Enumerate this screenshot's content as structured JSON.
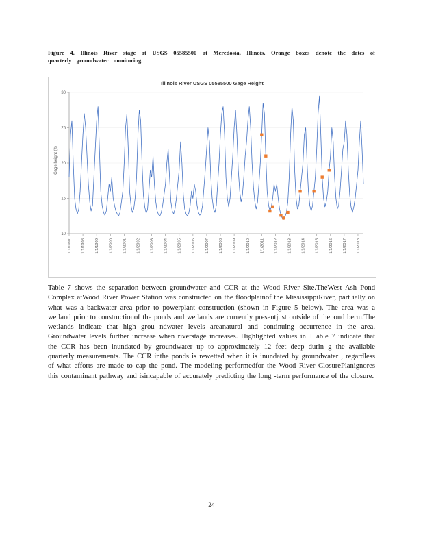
{
  "page": {
    "number": "24"
  },
  "caption": {
    "text": "Figure 4. Illinois River stage at USGS 05585500 at Meredosia, Illinois. Orange boxes denote the dates of quarterly groundwater monitoring."
  },
  "body": {
    "paragraph": "Table 7 shows the separation between groundwater and CCR at the Wood River Site.TheWest Ash Pond Complex atWood River Power Station was constructed on the floodplainof the MississippiRiver, part ially on what was a backwater area prior to powerplant construction (shown in Figure 5 below). The area was a wetland prior to constructionof the ponds and wetlands are currently presentjust outside of thepond berm.The wetlands indicate that high grou ndwater levels areanatural and continuing occurrence in the area. Groundwater levels further increase when riverstage increases. Highlighted values in T able 7 indicate that the CCR has been inundated by groundwater up to approximately 12 feet deep durin g the available quarterly measurements. The CCR inthe ponds is rewetted when it is inundated by groundwater , regardless of what efforts are made to cap the pond. The modeling performedfor the Wood River ClosurePlanignores this contaminant pathway and isincapable of accurately predicting the long -term performance of the closure."
  },
  "chart_data": {
    "type": "line",
    "title": "Illinois River USGS 05585500 Gage Height",
    "xlabel": "",
    "ylabel": "Gage height (ft)",
    "ylim": [
      10,
      30
    ],
    "y_ticks": [
      10,
      15,
      20,
      25,
      30
    ],
    "x_start": 1997,
    "x_end": 2018.4,
    "x_tick_labels": [
      "1/1/1997",
      "1/1/1998",
      "1/1/1999",
      "1/1/2000",
      "1/1/2001",
      "1/1/2002",
      "1/1/2003",
      "1/1/2004",
      "1/1/2005",
      "1/1/2006",
      "1/1/2007",
      "1/1/2008",
      "1/1/2009",
      "1/1/2010",
      "1/1/2011",
      "1/1/2012",
      "1/1/2013",
      "1/1/2014",
      "1/1/2015",
      "1/1/2016",
      "1/1/2017",
      "1/1/2018"
    ],
    "grid": "faint-horizontal",
    "legend": "none",
    "line_color": "#4472c4",
    "marker_color": "#ed7d31",
    "axis_color": "#9f9f9f",
    "series": [
      {
        "name": "Gage height (ft), sampled ~monthly 1997-2018 (estimated from plot)",
        "values": [
          18,
          24,
          26,
          20,
          15,
          13.5,
          12.8,
          13.5,
          16,
          20,
          24,
          27,
          25,
          21,
          17,
          14.5,
          13.2,
          14,
          18,
          22,
          26,
          28,
          22,
          16,
          14,
          13,
          12.6,
          13.2,
          15,
          17,
          16,
          18,
          15,
          14,
          13.2,
          12.8,
          12.5,
          13,
          14.5,
          16,
          20,
          25,
          27,
          22,
          16,
          14,
          13,
          13.5,
          15,
          18,
          24,
          27.5,
          26,
          20,
          15.5,
          13.8,
          12.9,
          13.4,
          16,
          19,
          18,
          21,
          17,
          14.5,
          13.2,
          12.7,
          12.5,
          13,
          14,
          15.5,
          17,
          20,
          22,
          18,
          14.5,
          13.2,
          12.8,
          13.5,
          15,
          17,
          19,
          23,
          20,
          15.5,
          13.5,
          12.8,
          12.5,
          12.9,
          14,
          16,
          15,
          17,
          16,
          14,
          13,
          12.6,
          12.9,
          14,
          16.5,
          19,
          22,
          25,
          23,
          18,
          15,
          13.5,
          13,
          14,
          17,
          20,
          24,
          27,
          28,
          24,
          18,
          15,
          13.8,
          15,
          18,
          21,
          25,
          27.5,
          24,
          19,
          16,
          14.5,
          15.5,
          18,
          21,
          23,
          26,
          28,
          25,
          20,
          16.5,
          14.5,
          13.5,
          14.5,
          17,
          20,
          24,
          28.5,
          27,
          21,
          16,
          14,
          13.2,
          13.8,
          15,
          17,
          16,
          17,
          15,
          13.5,
          12.6,
          12.2,
          12,
          12.4,
          13,
          14.5,
          18,
          24,
          28,
          26,
          19,
          15,
          13.5,
          14,
          16,
          18,
          20,
          24,
          25,
          20,
          16,
          14,
          13.2,
          14,
          16,
          18,
          22,
          27,
          29.5,
          24,
          18,
          15,
          13.8,
          14.5,
          16,
          19,
          21,
          25,
          23,
          18,
          15,
          13.5,
          14,
          16,
          19,
          22,
          23,
          26,
          24,
          19,
          15.5,
          13.8,
          13,
          13.8,
          15,
          17,
          19,
          23,
          26,
          22,
          17
        ]
      }
    ],
    "markers": {
      "name": "Quarterly groundwater monitoring dates (orange boxes)",
      "points": [
        [
          2011.0,
          24.0
        ],
        [
          2011.3,
          21.0
        ],
        [
          2011.6,
          13.2
        ],
        [
          2011.8,
          13.8
        ],
        [
          2012.4,
          12.6
        ],
        [
          2012.6,
          12.2
        ],
        [
          2012.9,
          13.0
        ],
        [
          2013.8,
          16.0
        ],
        [
          2014.8,
          16.0
        ],
        [
          2015.4,
          18.0
        ],
        [
          2015.9,
          19.0
        ]
      ]
    }
  }
}
